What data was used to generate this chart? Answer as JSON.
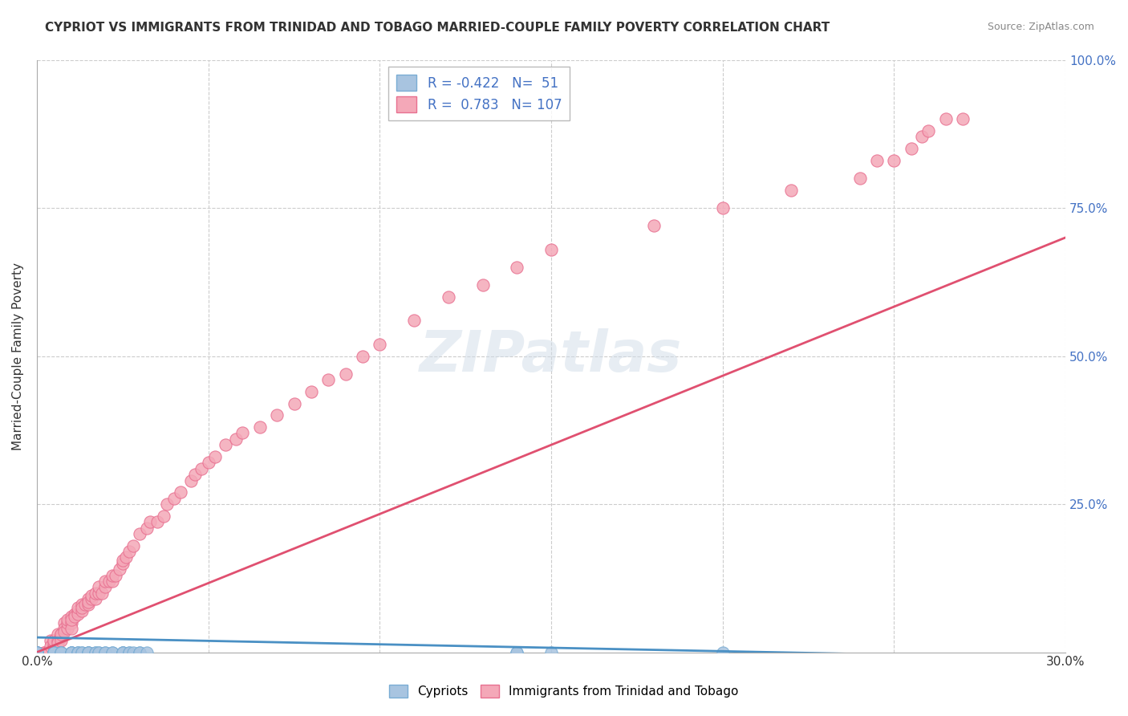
{
  "title": "CYPRIOT VS IMMIGRANTS FROM TRINIDAD AND TOBAGO MARRIED-COUPLE FAMILY POVERTY CORRELATION CHART",
  "source": "Source: ZipAtlas.com",
  "xlabel_bottom": "",
  "ylabel": "Married-Couple Family Poverty",
  "xmin": 0.0,
  "xmax": 0.3,
  "ymin": 0.0,
  "ymax": 1.0,
  "xticks": [
    0.0,
    0.05,
    0.1,
    0.15,
    0.2,
    0.25,
    0.3
  ],
  "xtick_labels": [
    "0.0%",
    "",
    "",
    "",
    "",
    "",
    "30.0%"
  ],
  "yticks": [
    0.0,
    0.25,
    0.5,
    0.75,
    1.0
  ],
  "ytick_labels": [
    "",
    "25.0%",
    "50.0%",
    "75.0%",
    "100.0%"
  ],
  "blue_color": "#a8c4e0",
  "blue_edge": "#7aadd4",
  "pink_color": "#f4a8b8",
  "pink_edge": "#e87090",
  "blue_line_color": "#4a90c4",
  "pink_line_color": "#e05070",
  "R_blue": -0.422,
  "N_blue": 51,
  "R_pink": 0.783,
  "N_pink": 107,
  "legend_label_blue": "Cypriots",
  "legend_label_pink": "Immigrants from Trinidad and Tobago",
  "watermark": "ZIPatlas",
  "blue_scatter_x": [
    0.0,
    0.0,
    0.0,
    0.0,
    0.0,
    0.0,
    0.005,
    0.005,
    0.005,
    0.005,
    0.005,
    0.005,
    0.007,
    0.007,
    0.007,
    0.01,
    0.01,
    0.01,
    0.01,
    0.01,
    0.012,
    0.012,
    0.012,
    0.013,
    0.013,
    0.015,
    0.015,
    0.015,
    0.015,
    0.017,
    0.017,
    0.018,
    0.018,
    0.02,
    0.02,
    0.022,
    0.022,
    0.025,
    0.025,
    0.025,
    0.025,
    0.027,
    0.027,
    0.028,
    0.03,
    0.03,
    0.032,
    0.14,
    0.14,
    0.15,
    0.2
  ],
  "blue_scatter_y": [
    0.0,
    0.0,
    0.0,
    0.0,
    0.0,
    0.0,
    0.0,
    0.0,
    0.0,
    0.0,
    0.0,
    0.0,
    0.0,
    0.0,
    0.0,
    0.0,
    0.0,
    0.0,
    0.0,
    0.0,
    0.0,
    0.0,
    0.0,
    0.0,
    0.0,
    0.0,
    0.0,
    0.0,
    0.0,
    0.0,
    0.0,
    0.0,
    0.0,
    0.0,
    0.0,
    0.0,
    0.0,
    0.0,
    0.0,
    0.0,
    0.0,
    0.0,
    0.0,
    0.0,
    0.0,
    0.0,
    0.0,
    0.0,
    0.0,
    0.0,
    0.0
  ],
  "pink_scatter_x": [
    0.0,
    0.0,
    0.0,
    0.0,
    0.0,
    0.0,
    0.0,
    0.0,
    0.0,
    0.002,
    0.002,
    0.003,
    0.003,
    0.003,
    0.004,
    0.004,
    0.005,
    0.005,
    0.005,
    0.005,
    0.006,
    0.006,
    0.006,
    0.007,
    0.007,
    0.007,
    0.007,
    0.008,
    0.008,
    0.008,
    0.009,
    0.009,
    0.009,
    0.01,
    0.01,
    0.01,
    0.01,
    0.011,
    0.011,
    0.012,
    0.012,
    0.012,
    0.013,
    0.013,
    0.013,
    0.014,
    0.015,
    0.015,
    0.015,
    0.016,
    0.016,
    0.017,
    0.017,
    0.018,
    0.018,
    0.019,
    0.02,
    0.02,
    0.021,
    0.022,
    0.022,
    0.023,
    0.024,
    0.025,
    0.025,
    0.026,
    0.027,
    0.028,
    0.03,
    0.032,
    0.033,
    0.035,
    0.037,
    0.038,
    0.04,
    0.042,
    0.045,
    0.046,
    0.048,
    0.05,
    0.052,
    0.055,
    0.058,
    0.06,
    0.065,
    0.07,
    0.075,
    0.08,
    0.085,
    0.09,
    0.095,
    0.1,
    0.11,
    0.12,
    0.13,
    0.14,
    0.15,
    0.18,
    0.2,
    0.22,
    0.24,
    0.25,
    0.255,
    0.258,
    0.26,
    0.265,
    0.27
  ],
  "pink_scatter_y": [
    0.0,
    0.0,
    0.0,
    0.0,
    0.0,
    0.0,
    0.0,
    0.0,
    0.0,
    0.0,
    0.0,
    0.0,
    0.0,
    0.0,
    0.02,
    0.01,
    0.02,
    0.01,
    0.015,
    0.02,
    0.03,
    0.02,
    0.015,
    0.03,
    0.025,
    0.02,
    0.03,
    0.05,
    0.04,
    0.035,
    0.04,
    0.05,
    0.055,
    0.05,
    0.04,
    0.06,
    0.055,
    0.065,
    0.06,
    0.07,
    0.065,
    0.075,
    0.07,
    0.08,
    0.075,
    0.08,
    0.08,
    0.09,
    0.085,
    0.09,
    0.095,
    0.09,
    0.1,
    0.1,
    0.11,
    0.1,
    0.11,
    0.12,
    0.12,
    0.12,
    0.13,
    0.13,
    0.14,
    0.15,
    0.155,
    0.16,
    0.17,
    0.18,
    0.2,
    0.21,
    0.22,
    0.22,
    0.23,
    0.25,
    0.26,
    0.27,
    0.29,
    0.3,
    0.31,
    0.32,
    0.33,
    0.35,
    0.36,
    0.37,
    0.38,
    0.4,
    0.42,
    0.44,
    0.46,
    0.47,
    0.5,
    0.52,
    0.56,
    0.6,
    0.62,
    0.65,
    0.68,
    0.72,
    0.75,
    0.78,
    0.8,
    0.83,
    0.85,
    0.87,
    0.88,
    0.9,
    0.9
  ],
  "pink_outlier_x": [
    0.245
  ],
  "pink_outlier_y": [
    0.83
  ]
}
